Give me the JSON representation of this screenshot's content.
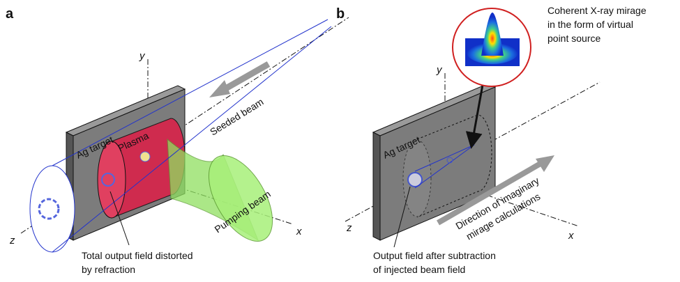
{
  "panels": [
    {
      "label": "a",
      "axes": {
        "x": "x",
        "y": "y",
        "z": "z"
      },
      "target": "Ag target",
      "plasma": "Plasma",
      "seeded_beam": "Seeded beam",
      "pumping_beam": "Pumping beam",
      "caption": [
        "Total output field distorted",
        "by refraction"
      ]
    },
    {
      "label": "b",
      "axes": {
        "x": "x",
        "y": "y",
        "z": "z"
      },
      "target": "Ag target",
      "inset_caption": [
        "Coherent X-ray mirage",
        "in the form of virtual",
        "point source"
      ],
      "direction": [
        "Direction of imaginary",
        "mirage calculations"
      ],
      "caption": [
        "Output field after subtraction",
        "of injected beam field"
      ]
    }
  ]
}
